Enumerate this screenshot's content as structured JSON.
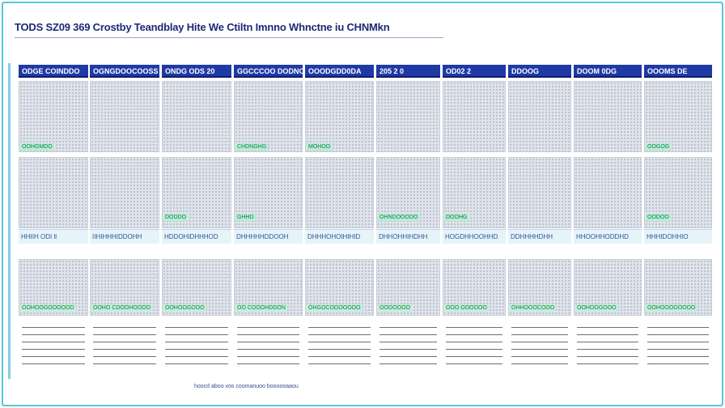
{
  "title": "TODS SZ09 369 Crostby Teandblay Hite We Ctiltn Imnno Whnctne iu CHNMkn",
  "colors": {
    "header_blue": "#1f3aa5",
    "border_cyan": "#57c6d6",
    "cell_gray": "#dfe3ea",
    "tag_green": "#137e4f"
  },
  "columns": [
    {
      "label": "ODGE COINDDO"
    },
    {
      "label": "OGNGDOOCOOSS"
    },
    {
      "label": "ONDG ODS 20"
    },
    {
      "label": "GGCCCOO DODNOO"
    },
    {
      "label": "OOODGDD0DA"
    },
    {
      "label": "205 2 0"
    },
    {
      "label": "OD02 2"
    },
    {
      "label": "DDOOG"
    },
    {
      "label": "DOOM 0DG"
    },
    {
      "label": "OOOMS DE"
    }
  ],
  "row1_tags": [
    "OOHGMDO",
    "",
    "",
    "CHDNGHG",
    "MOHOO",
    "",
    "",
    "",
    "",
    "OOGOG"
  ],
  "row2_tags": [
    "",
    "",
    "DODDO",
    "GHHD",
    "",
    "OHNDOOODO",
    "DOOHG",
    "",
    "",
    "OODOO"
  ],
  "strip_texts": [
    "HHIIH ODI ll",
    "IIHIHHHIDDOHH",
    "HDDOHIDHHHOD",
    "DHHHHHDDOOH",
    "DHHHOHOIHIHID",
    "DHHOHHIHDHH",
    "HOGDHHOOHHD",
    "DDHHHHDHH",
    "HHOOHHODDHD",
    "HHHIDOHHIO"
  ],
  "bottom_tags": [
    "OOHOOGOOOOOD",
    "OOHO CDOOHOOOO",
    "OOHOOGOOO",
    "OO COOOHDDON",
    "OHGOCOOOOOOO",
    "OOOOOOO",
    "OOO OOOOOO",
    "OHHOOOCOOO",
    "OOHOOGOOO",
    "OOHOOOOOOOO"
  ],
  "footnote": "hoocd aboo vos coomanuoo boooooaaou"
}
